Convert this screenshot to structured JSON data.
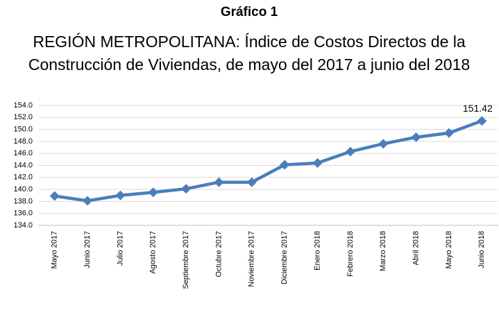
{
  "chart_data": {
    "type": "line",
    "title": "Gráfico 1",
    "subtitle": [
      "REGIÓN METROPOLITANA: Índice de Costos Directos de la",
      "Construcción de Viviendas,  de mayo del 2017 a junio del 2018"
    ],
    "categories": [
      "Mayo 2017",
      "Junio 2017",
      "Julio 2017",
      "Agosto 2017",
      "Septiembre 2017",
      "Octubre 2017",
      "Noviembre 2017",
      "Diciembre 2017",
      "Enero 2018",
      "Febrero 2018",
      "Marzo 2018",
      "Abril 2018",
      "Mayo 2018",
      "Junio 2018"
    ],
    "values": [
      138.9,
      138.1,
      139.0,
      139.5,
      140.1,
      141.2,
      141.2,
      144.1,
      144.4,
      146.3,
      147.6,
      148.7,
      149.4,
      151.42
    ],
    "color": "#4a7ebb",
    "ylim": [
      134,
      154
    ],
    "yticks": [
      {
        "value": 134,
        "label": "134.0"
      },
      {
        "value": 136,
        "label": "136.0"
      },
      {
        "value": 138,
        "label": "138.0"
      },
      {
        "value": 140,
        "label": "140.0"
      },
      {
        "value": 142,
        "label": "142.0"
      },
      {
        "value": 144,
        "label": "144.0"
      },
      {
        "value": 146,
        "label": "146.0"
      },
      {
        "value": 148,
        "label": "148.0"
      },
      {
        "value": 150,
        "label": "150.0"
      },
      {
        "value": 152,
        "label": "152.0"
      },
      {
        "value": 154,
        "label": "154.0"
      }
    ],
    "grid": true
  }
}
